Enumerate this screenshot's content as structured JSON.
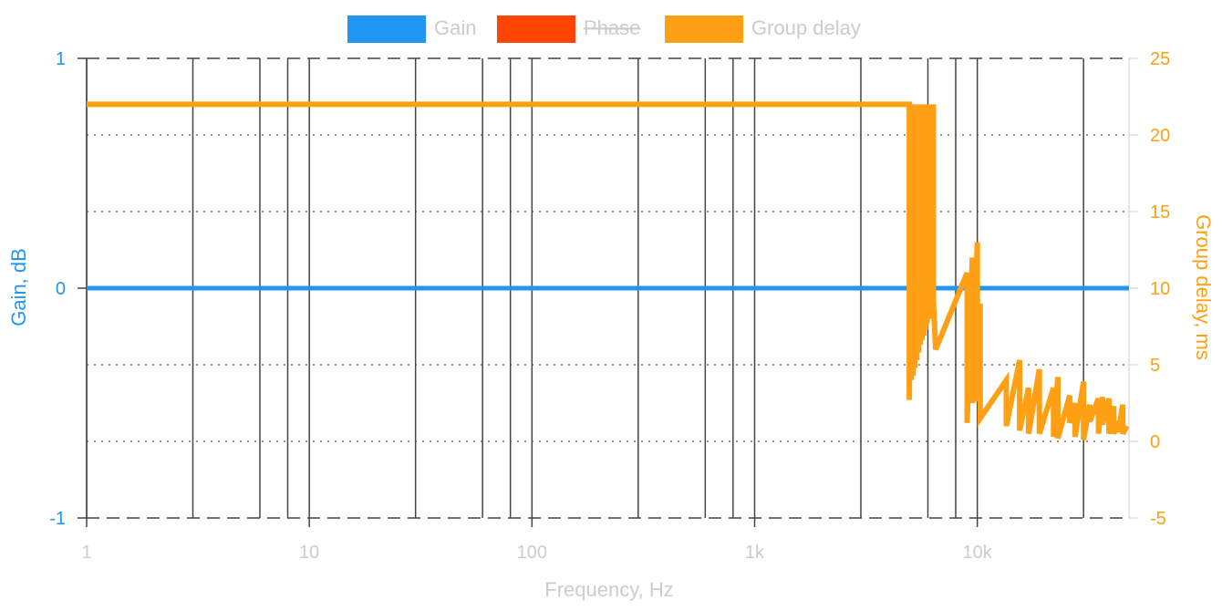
{
  "chart_data": {
    "type": "line",
    "xscale": "log",
    "xlabel": "Frequency, Hz",
    "x_range": [
      1,
      48000
    ],
    "x_ticks": [
      {
        "value": 1,
        "label": "1"
      },
      {
        "value": 10,
        "label": "10"
      },
      {
        "value": 100,
        "label": "100"
      },
      {
        "value": 1000,
        "label": "1k"
      },
      {
        "value": 10000,
        "label": "10k"
      }
    ],
    "x_minor_gridlines": [
      3,
      6,
      8,
      30,
      60,
      80,
      300,
      600,
      800,
      3000,
      6000,
      8000,
      30000
    ],
    "left_axis": {
      "label": "Gain, dB",
      "color": "#2196f3",
      "range": [
        -1,
        1
      ],
      "ticks": [
        {
          "value": 1,
          "label": "1"
        },
        {
          "value": 0,
          "label": "0"
        },
        {
          "value": -1,
          "label": "-1"
        }
      ]
    },
    "right_axis": {
      "label": "Group delay, ms",
      "color": "#ffa014",
      "range": [
        -5,
        25
      ],
      "ticks": [
        {
          "value": 25,
          "label": "25"
        },
        {
          "value": 20,
          "label": "20"
        },
        {
          "value": 15,
          "label": "15"
        },
        {
          "value": 10,
          "label": "10"
        },
        {
          "value": 5,
          "label": "5"
        },
        {
          "value": 0,
          "label": "0"
        },
        {
          "value": -5,
          "label": "-5"
        }
      ]
    },
    "grid": true,
    "legend": {
      "position": "top-center",
      "items": [
        {
          "name": "Gain",
          "color": "#2196f3",
          "hidden": false
        },
        {
          "name": "Phase",
          "color": "#ff4500",
          "hidden": true
        },
        {
          "name": "Group delay",
          "color": "#ffa014",
          "hidden": false
        }
      ]
    },
    "series": [
      {
        "name": "Gain",
        "axis": "left",
        "x": [
          1,
          48000
        ],
        "y": [
          0,
          0
        ]
      },
      {
        "name": "Group delay",
        "axis": "right",
        "x": [
          1,
          4950,
          4950,
          5050,
          5050,
          5150,
          5150,
          5250,
          5250,
          5350,
          5350,
          5450,
          5450,
          5550,
          5550,
          5650,
          5650,
          5750,
          5750,
          5850,
          5850,
          5950,
          5950,
          6050,
          6050,
          6150,
          6150,
          6250,
          6250,
          6350,
          6350,
          6500,
          9000,
          9000,
          9500,
          9500,
          10000,
          10000,
          10300,
          10300,
          13500,
          13500,
          15500,
          15500,
          17000,
          17000,
          19000,
          19000,
          22000,
          22000,
          23000,
          23000,
          26000,
          26000,
          27500,
          27500,
          30000,
          30000,
          32000,
          32000,
          35000,
          35000,
          36500,
          36500,
          39000,
          39000,
          41000,
          41000,
          43000,
          43000,
          45000,
          45000,
          47000
        ],
        "y": [
          22,
          22,
          2.7,
          22,
          4,
          22,
          4.3,
          22,
          4.8,
          22,
          5.3,
          22,
          5.8,
          22,
          6.3,
          22,
          6.6,
          22,
          6.9,
          22,
          7.3,
          22,
          7.7,
          22,
          8,
          22,
          8.4,
          22,
          8.8,
          22,
          9.2,
          6,
          11,
          1.2,
          12,
          2.5,
          13,
          2.6,
          9,
          1.5,
          4,
          1,
          5.3,
          0.7,
          3.5,
          0.5,
          4.7,
          0.5,
          3.5,
          0.3,
          4.2,
          0.2,
          3,
          1.2,
          2.5,
          0.3,
          3.9,
          0.1,
          2.4,
          1.3,
          2.8,
          0.5,
          2.9,
          1.1,
          2.8,
          0.5,
          2.3,
          0.5,
          1.3,
          0.6,
          2.4,
          0.5,
          1
        ]
      }
    ]
  }
}
